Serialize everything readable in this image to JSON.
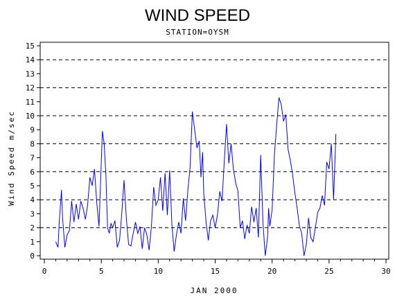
{
  "chart_data": {
    "type": "line",
    "title": "WIND SPEED",
    "subtitle": "STATION=OYSM",
    "xlabel": "JAN 2000",
    "ylabel": "Wind Speed m/sec",
    "xlim": [
      0,
      30
    ],
    "ylim": [
      0,
      15.5
    ],
    "x_ticks": [
      0,
      5,
      10,
      15,
      20,
      25,
      30
    ],
    "y_ticks": [
      0,
      1,
      2,
      3,
      4,
      5,
      6,
      7,
      8,
      9,
      10,
      11,
      12,
      13,
      14,
      15
    ],
    "gridlines_y": [
      2,
      4,
      6,
      8,
      10,
      12,
      14
    ],
    "grid": "horizontal dashed at even values",
    "line_color": "#0000ff",
    "series": [
      {
        "x": [
          1.0,
          1.2,
          1.3,
          1.5,
          1.6,
          1.8,
          2.0,
          2.2,
          2.4,
          2.6,
          2.8,
          3.0,
          3.2,
          3.4,
          3.6,
          3.8,
          4.0,
          4.2,
          4.4,
          4.6,
          4.8,
          5.0,
          5.1,
          5.25,
          5.4,
          5.55,
          5.7,
          5.85,
          6.0,
          6.2,
          6.4,
          6.6,
          6.8,
          7.0,
          7.2,
          7.4,
          7.6,
          7.8,
          8.0,
          8.2,
          8.4,
          8.6,
          8.8,
          9.0,
          9.2,
          9.4,
          9.6,
          9.8,
          10.0,
          10.2,
          10.4,
          10.6,
          10.8,
          11.0,
          11.2,
          11.4,
          11.6,
          11.8,
          12.0,
          12.2,
          12.4,
          12.6,
          12.8,
          13.0,
          13.2,
          13.4,
          13.6,
          13.75,
          13.9,
          14.0,
          14.2,
          14.4,
          14.6,
          14.8,
          15.0,
          15.2,
          15.4,
          15.6,
          15.8,
          16.0,
          16.2,
          16.4,
          16.6,
          16.8,
          17.0,
          17.2,
          17.4,
          17.6,
          17.8,
          18.0,
          18.2,
          18.4,
          18.6,
          18.8,
          19.0,
          19.2,
          19.4,
          19.6,
          19.7,
          19.8,
          20.0,
          20.2,
          20.4,
          20.6,
          20.8,
          21.0,
          21.2,
          21.4,
          21.6,
          21.8,
          22.0,
          22.2,
          22.4,
          22.6,
          22.8,
          23.0,
          23.2,
          23.4,
          23.6,
          23.8,
          24.0,
          24.2,
          24.4,
          24.6,
          24.8,
          25.0,
          25.2,
          25.4,
          25.6
        ],
        "values": [
          1.0,
          0.6,
          2.3,
          4.7,
          2.7,
          0.6,
          1.5,
          1.8,
          3.9,
          2.4,
          3.7,
          2.6,
          3.9,
          3.4,
          2.6,
          3.6,
          5.6,
          5.0,
          6.2,
          3.8,
          2.1,
          6.8,
          8.9,
          8.0,
          5.9,
          2.0,
          1.6,
          2.3,
          2.0,
          2.5,
          0.6,
          1.1,
          3.0,
          5.4,
          2.7,
          0.8,
          0.7,
          1.6,
          2.4,
          1.6,
          2.1,
          0.5,
          2.0,
          1.5,
          0.4,
          2.1,
          4.9,
          3.6,
          4.0,
          5.6,
          3.2,
          5.9,
          2.9,
          6.1,
          2.2,
          0.3,
          1.5,
          2.4,
          1.6,
          4.1,
          2.5,
          4.7,
          6.3,
          10.3,
          9.0,
          7.7,
          8.2,
          5.6,
          7.4,
          4.4,
          2.4,
          1.1,
          2.5,
          2.9,
          2.0,
          2.9,
          4.6,
          3.9,
          6.7,
          9.4,
          6.6,
          8.0,
          6.2,
          5.2,
          4.6,
          2.0,
          2.5,
          1.2,
          2.2,
          1.6,
          3.5,
          2.4,
          3.4,
          1.3,
          7.2,
          2.3,
          0.0,
          1.3,
          3.4,
          2.1,
          3.3,
          7.2,
          9.3,
          11.3,
          10.8,
          9.6,
          10.1,
          7.6,
          6.8,
          5.8,
          4.5,
          3.4,
          2.1,
          1.6,
          0.0,
          0.8,
          2.7,
          1.3,
          1.0,
          2.0,
          3.1,
          3.4,
          4.3,
          3.6,
          6.7,
          6.2,
          8.0,
          4.0,
          8.7
        ]
      }
    ]
  }
}
